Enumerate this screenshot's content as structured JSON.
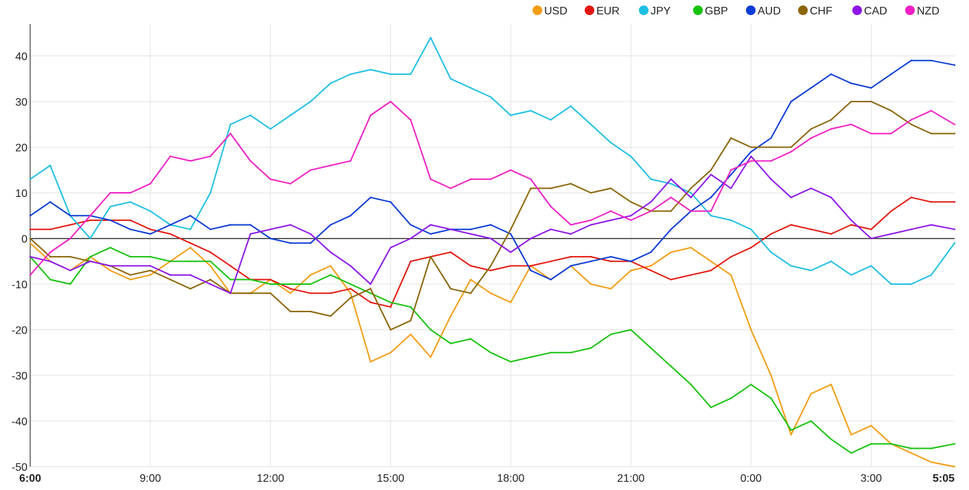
{
  "chart_data": {
    "type": "line",
    "xlabel": "",
    "ylabel": "",
    "ylim": [
      -50,
      47
    ],
    "y_ticks": [
      40,
      30,
      20,
      10,
      0,
      -10,
      -20,
      -30,
      -40,
      -50
    ],
    "y_tick_labels": [
      "40",
      "30",
      "20",
      "10",
      "0",
      "-10",
      "-20",
      "-30",
      "-40",
      "-50"
    ],
    "x_range_hours": [
      6,
      29.0833
    ],
    "x_ticks": [
      {
        "x": 6,
        "label": "6:00",
        "bold": true
      },
      {
        "x": 9,
        "label": "9:00",
        "bold": false
      },
      {
        "x": 12,
        "label": "12:00",
        "bold": false
      },
      {
        "x": 15,
        "label": "15:00",
        "bold": false
      },
      {
        "x": 18,
        "label": "18:00",
        "bold": false
      },
      {
        "x": 21,
        "label": "21:00",
        "bold": false
      },
      {
        "x": 24,
        "label": "0:00",
        "bold": false
      },
      {
        "x": 27,
        "label": "3:00",
        "bold": false
      },
      {
        "x": 29.0833,
        "label": "5:05",
        "bold": true
      }
    ],
    "grid": true,
    "zero_line": true,
    "legend_position": "top-right",
    "x": [
      6,
      6.5,
      7,
      7.5,
      8,
      8.5,
      9,
      9.5,
      10,
      10.5,
      11,
      11.5,
      12,
      12.5,
      13,
      13.5,
      14,
      14.5,
      15,
      15.5,
      16,
      16.5,
      17,
      17.5,
      18,
      18.5,
      19,
      19.5,
      20,
      20.5,
      21,
      21.5,
      22,
      22.5,
      23,
      23.5,
      24,
      24.5,
      25,
      25.5,
      26,
      26.5,
      27,
      27.5,
      28,
      28.5,
      29.0833
    ],
    "series": [
      {
        "name": "USD",
        "color": "#f39c12",
        "values": [
          -1,
          -5,
          -7,
          -4,
          -7,
          -9,
          -8,
          -5,
          -2,
          -6,
          -12,
          -12,
          -9,
          -12,
          -8,
          -6,
          -12,
          -27,
          -25,
          -21,
          -26,
          -17,
          -9,
          -12,
          -14,
          -6,
          -9,
          -6,
          -10,
          -11,
          -7,
          -6,
          -3,
          -2,
          -5,
          -8,
          -20,
          -30,
          -43,
          -34,
          -32,
          -43,
          -41,
          -45,
          -47,
          -49,
          -50
        ]
      },
      {
        "name": "EUR",
        "color": "#e2180f",
        "values": [
          2,
          2,
          3,
          4,
          4,
          4,
          2,
          1,
          -1,
          -3,
          -6,
          -9,
          -9,
          -11,
          -12,
          -12,
          -11,
          -14,
          -15,
          -5,
          -4,
          -3,
          -6,
          -7,
          -6,
          -6,
          -5,
          -4,
          -4,
          -5,
          -5,
          -7,
          -9,
          -8,
          -7,
          -4,
          -2,
          1,
          3,
          2,
          1,
          3,
          2,
          6,
          9,
          8,
          8
        ]
      },
      {
        "name": "JPY",
        "color": "#1ebfe3",
        "values": [
          13,
          16,
          5,
          0,
          7,
          8,
          6,
          3,
          2,
          10,
          25,
          27,
          24,
          27,
          30,
          34,
          36,
          37,
          36,
          36,
          44,
          35,
          33,
          31,
          27,
          28,
          26,
          29,
          25,
          21,
          18,
          13,
          12,
          10,
          5,
          4,
          2,
          -3,
          -6,
          -7,
          -5,
          -8,
          -6,
          -10,
          -10,
          -8,
          -1
        ]
      },
      {
        "name": "GBP",
        "color": "#16c20d",
        "values": [
          -4,
          -9,
          -10,
          -4,
          -2,
          -4,
          -4,
          -5,
          -5,
          -5,
          -9,
          -9,
          -10,
          -10,
          -10,
          -8,
          -10,
          -12,
          -14,
          -15,
          -20,
          -23,
          -22,
          -25,
          -27,
          -26,
          -25,
          -25,
          -24,
          -21,
          -20,
          -24,
          -28,
          -32,
          -37,
          -35,
          -32,
          -35,
          -42,
          -40,
          -44,
          -47,
          -45,
          -45,
          -46,
          -46,
          -45
        ]
      },
      {
        "name": "AUD",
        "color": "#0b3bd6",
        "values": [
          5,
          8,
          5,
          5,
          4,
          2,
          1,
          3,
          5,
          2,
          3,
          3,
          0,
          -1,
          -1,
          3,
          5,
          9,
          8,
          3,
          1,
          2,
          2,
          3,
          1,
          -7,
          -9,
          -6,
          -5,
          -4,
          -5,
          -3,
          2,
          6,
          9,
          14,
          19,
          22,
          30,
          33,
          36,
          34,
          33,
          36,
          39,
          39,
          38
        ]
      },
      {
        "name": "CHF",
        "color": "#8b6508",
        "values": [
          0,
          -4,
          -4,
          -5,
          -6,
          -8,
          -7,
          -9,
          -11,
          -9,
          -12,
          -12,
          -12,
          -16,
          -16,
          -17,
          -13,
          -11,
          -20,
          -18,
          -4,
          -11,
          -12,
          -6,
          2,
          11,
          11,
          12,
          10,
          11,
          8,
          6,
          6,
          11,
          15,
          22,
          20,
          20,
          20,
          24,
          26,
          30,
          30,
          28,
          25,
          23,
          23
        ]
      },
      {
        "name": "CAD",
        "color": "#8e16e8",
        "values": [
          -4,
          -5,
          -7,
          -5,
          -6,
          -6,
          -6,
          -8,
          -8,
          -10,
          -12,
          1,
          2,
          3,
          1,
          -3,
          -6,
          -10,
          -2,
          0,
          3,
          2,
          1,
          0,
          -3,
          0,
          2,
          1,
          3,
          4,
          5,
          8,
          13,
          9,
          14,
          11,
          18,
          13,
          9,
          11,
          9,
          4,
          0,
          1,
          2,
          3,
          2
        ]
      },
      {
        "name": "NZD",
        "color": "#f01fc4",
        "values": [
          -8,
          -3,
          0,
          5,
          10,
          10,
          12,
          18,
          17,
          18,
          23,
          17,
          13,
          12,
          15,
          16,
          17,
          27,
          30,
          26,
          13,
          11,
          13,
          13,
          15,
          13,
          7,
          3,
          4,
          6,
          4,
          6,
          9,
          6,
          6,
          15,
          17,
          17,
          19,
          22,
          24,
          25,
          23,
          23,
          26,
          28,
          25
        ]
      }
    ]
  }
}
